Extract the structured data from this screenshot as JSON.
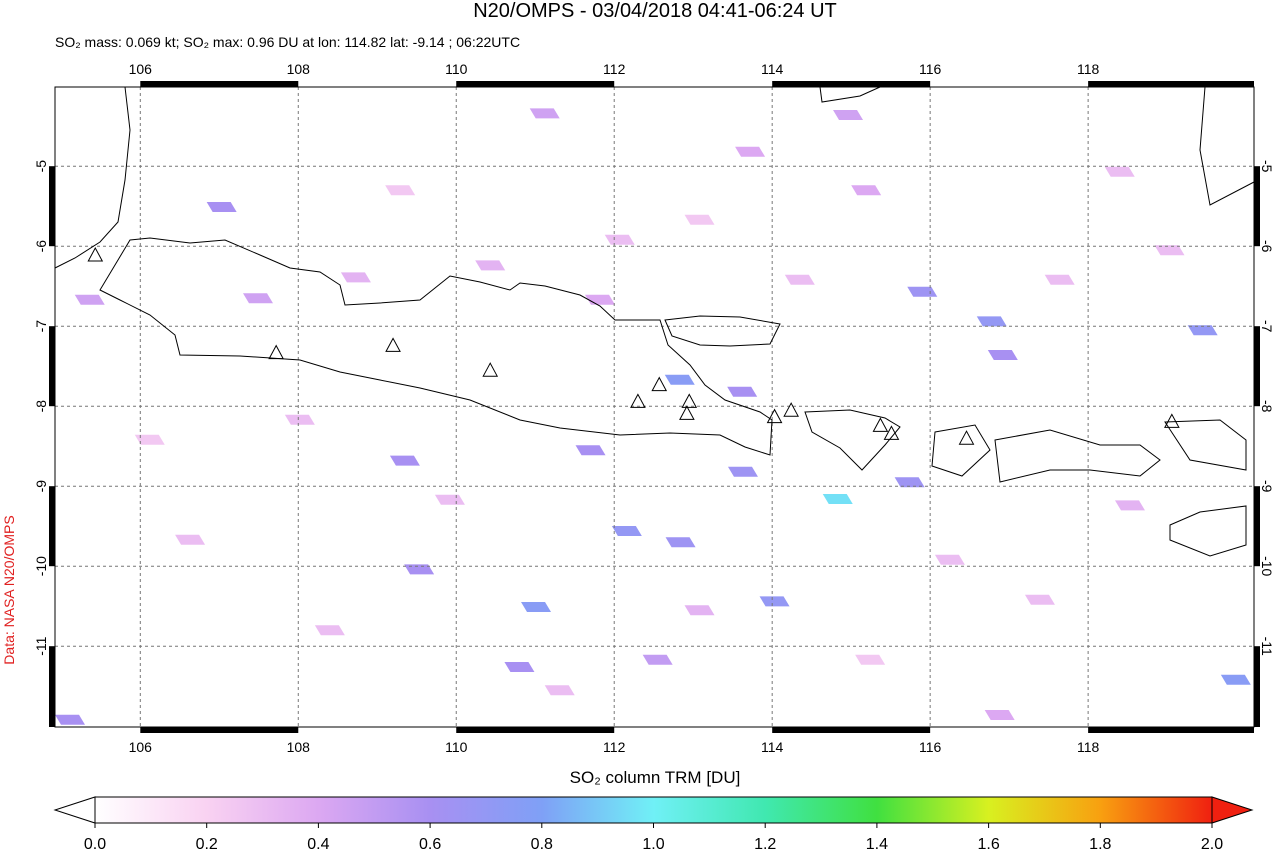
{
  "map": {
    "title": "N20/OMPS - 03/04/2018 04:41-06:24 UT",
    "subtitle": "SO₂ mass: 0.069 kt; SO₂ max: 0.96 DU at lon: 114.82 lat: -9.14 ; 06:22UTC",
    "credit": "Data: NASA N20/OMPS",
    "xlim": [
      104.92,
      120.1
    ],
    "ylim": [
      -12.01,
      -4.01
    ],
    "xticks": [
      106,
      108,
      110,
      112,
      114,
      116,
      118
    ],
    "yticks": [
      -5,
      -6,
      -7,
      -8,
      -9,
      -10,
      -11
    ],
    "grid": true,
    "colorbar": {
      "label": "SO₂ column TRM [DU]",
      "lim": [
        0,
        2
      ],
      "colors": [
        "#ffffff",
        "#f9d2f2",
        "#dca8f2",
        "#a890f2",
        "#7fa0f6",
        "#70f0f6",
        "#40e8b0",
        "#40e040",
        "#d8f020",
        "#f8a010",
        "#f02010"
      ],
      "ticks": [
        {
          "value": 0,
          "label": "0.0"
        },
        {
          "value": 0.2,
          "label": "0.2"
        },
        {
          "value": 0.4,
          "label": "0.4"
        },
        {
          "value": 0.6,
          "label": "0.6"
        },
        {
          "value": 0.8,
          "label": "0.8"
        },
        {
          "value": 1,
          "label": "1.0"
        },
        {
          "value": 1.2,
          "label": "1.2"
        },
        {
          "value": 1.4,
          "label": "1.4"
        },
        {
          "value": 1.6,
          "label": "1.6"
        },
        {
          "value": 1.8,
          "label": "1.8"
        },
        {
          "value": 2,
          "label": "2.0"
        }
      ]
    },
    "volcanoes": [
      [
        105.43,
        -6.11
      ],
      [
        107.72,
        -7.33
      ],
      [
        109.2,
        -7.24
      ],
      [
        110.43,
        -7.55
      ],
      [
        112.3,
        -7.94
      ],
      [
        112.57,
        -7.73
      ],
      [
        112.95,
        -7.94
      ],
      [
        112.92,
        -8.09
      ],
      [
        114.03,
        -8.13
      ],
      [
        114.24,
        -8.05
      ],
      [
        115.37,
        -8.24
      ],
      [
        115.51,
        -8.34
      ],
      [
        116.46,
        -8.4
      ],
      [
        119.06,
        -8.19
      ]
    ],
    "pixels": [
      [
        107.03,
        -5.51,
        0.6
      ],
      [
        115.9,
        -6.57,
        0.65
      ],
      [
        116.78,
        -6.94,
        0.7
      ],
      [
        116.92,
        -7.36,
        0.6
      ],
      [
        119.45,
        -7.05,
        0.7
      ],
      [
        112.83,
        -7.67,
        0.75
      ],
      [
        113.62,
        -7.82,
        0.6
      ],
      [
        113.63,
        -8.82,
        0.65
      ],
      [
        114.83,
        -9.16,
        0.96
      ],
      [
        115.74,
        -8.95,
        0.65
      ],
      [
        112.16,
        -9.56,
        0.7
      ],
      [
        112.84,
        -9.7,
        0.65
      ],
      [
        109.53,
        -10.04,
        0.6
      ],
      [
        111.01,
        -10.51,
        0.75
      ],
      [
        114.03,
        -10.44,
        0.7
      ],
      [
        110.8,
        -11.26,
        0.6
      ],
      [
        119.87,
        -11.42,
        0.75
      ],
      [
        105.11,
        -11.92,
        0.6
      ],
      [
        109.35,
        -8.68,
        0.6
      ],
      [
        111.7,
        -8.55,
        0.6
      ],
      [
        112.55,
        -11.17,
        0.5
      ],
      [
        114.96,
        -4.36,
        0.45
      ],
      [
        115.19,
        -5.3,
        0.4
      ],
      [
        111.82,
        -6.67,
        0.4
      ],
      [
        110.43,
        -6.24,
        0.35
      ],
      [
        108.73,
        -6.39,
        0.35
      ],
      [
        107.49,
        -6.65,
        0.45
      ],
      [
        105.36,
        -6.67,
        0.45
      ],
      [
        111.12,
        -4.34,
        0.45
      ],
      [
        113.72,
        -4.82,
        0.4
      ],
      [
        118.4,
        -5.07,
        0.3
      ],
      [
        118.53,
        -9.24,
        0.35
      ],
      [
        116.88,
        -11.86,
        0.4
      ],
      [
        108.02,
        -8.17,
        0.3
      ],
      [
        106.63,
        -9.67,
        0.3
      ],
      [
        113.08,
        -10.55,
        0.35
      ],
      [
        116.25,
        -9.92,
        0.3
      ],
      [
        117.39,
        -10.42,
        0.3
      ],
      [
        108.4,
        -10.8,
        0.3
      ],
      [
        109.92,
        -9.17,
        0.3
      ],
      [
        115.24,
        -11.17,
        0.25
      ],
      [
        119.03,
        -6.05,
        0.3
      ],
      [
        106.12,
        -8.42,
        0.25
      ],
      [
        111.31,
        -11.55,
        0.3
      ],
      [
        117.64,
        -6.42,
        0.3
      ],
      [
        114.35,
        -6.42,
        0.3
      ],
      [
        113.08,
        -5.67,
        0.25
      ],
      [
        109.29,
        -5.3,
        0.25
      ],
      [
        112.07,
        -5.92,
        0.3
      ]
    ]
  }
}
